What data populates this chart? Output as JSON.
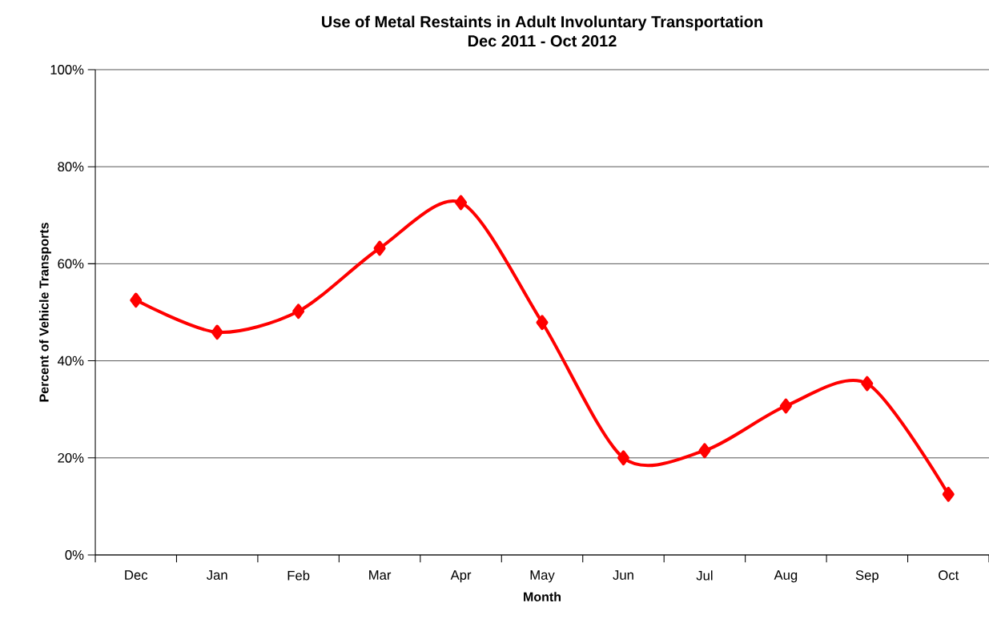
{
  "chart_data": {
    "type": "line",
    "title": "Use of Metal Restaints in  Adult Involuntary Transportation",
    "subtitle": "Dec 2011 - Oct 2012",
    "xlabel": "Month",
    "ylabel": "Percent of Vehicle Transports",
    "categories": [
      "Dec",
      "Jan",
      "Feb",
      "Mar",
      "Apr",
      "May",
      "Jun",
      "Jul",
      "Aug",
      "Sep",
      "Oct"
    ],
    "series": [
      {
        "color": "#ff0000",
        "values": [
          52.5,
          45.9,
          50.2,
          63.2,
          72.6,
          47.9,
          20.0,
          21.5,
          30.7,
          35.3,
          12.5
        ]
      }
    ],
    "ylim": [
      0,
      100
    ],
    "yticks": [
      {
        "value": 0,
        "label": "0%"
      },
      {
        "value": 20,
        "label": "20%"
      },
      {
        "value": 40,
        "label": "40%"
      },
      {
        "value": 60,
        "label": "60%"
      },
      {
        "value": 80,
        "label": "80%"
      },
      {
        "value": 100,
        "label": "100%"
      }
    ],
    "grid": "y",
    "marker": "diamond",
    "line_style": "solid"
  }
}
